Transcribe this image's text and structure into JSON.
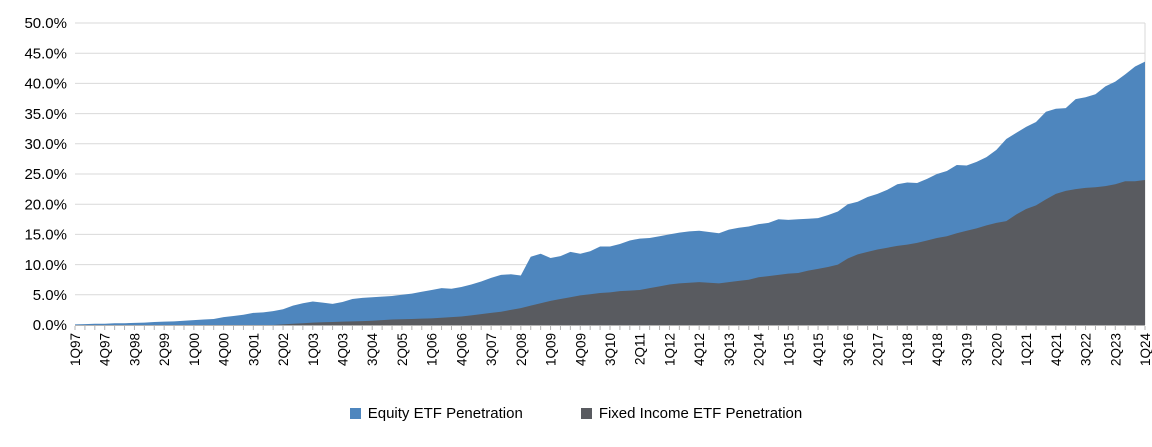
{
  "chart_data": {
    "type": "area",
    "title": "",
    "overlapping_series": true,
    "grid": "horizontal",
    "gridline_color": "#D9D9D9",
    "axis_line_color": "#B3B3B3",
    "text_color": "#000000",
    "legend_position": "bottom-center",
    "ylim": [
      0,
      50
    ],
    "y_tick_step": 5,
    "y_ticks": [
      "0.0%",
      "5.0%",
      "10.0%",
      "15.0%",
      "20.0%",
      "25.0%",
      "30.0%",
      "35.0%",
      "40.0%",
      "45.0%",
      "50.0%"
    ],
    "x_label_every": 3,
    "x": [
      "1Q97",
      "2Q97",
      "3Q97",
      "4Q97",
      "1Q98",
      "2Q98",
      "3Q98",
      "4Q98",
      "1Q99",
      "2Q99",
      "3Q99",
      "4Q99",
      "1Q00",
      "2Q00",
      "3Q00",
      "4Q00",
      "1Q01",
      "2Q01",
      "3Q01",
      "4Q01",
      "1Q02",
      "2Q02",
      "3Q02",
      "4Q02",
      "1Q03",
      "2Q03",
      "3Q03",
      "4Q03",
      "1Q04",
      "2Q04",
      "3Q04",
      "4Q04",
      "1Q05",
      "2Q05",
      "3Q05",
      "4Q05",
      "1Q06",
      "2Q06",
      "3Q06",
      "4Q06",
      "1Q07",
      "2Q07",
      "3Q07",
      "4Q07",
      "1Q08",
      "2Q08",
      "3Q08",
      "4Q08",
      "1Q09",
      "2Q09",
      "3Q09",
      "4Q09",
      "1Q10",
      "2Q10",
      "3Q10",
      "4Q10",
      "1Q11",
      "2Q11",
      "3Q11",
      "4Q11",
      "1Q12",
      "2Q12",
      "3Q12",
      "4Q12",
      "1Q13",
      "2Q13",
      "3Q13",
      "4Q13",
      "1Q14",
      "2Q14",
      "3Q14",
      "4Q14",
      "1Q15",
      "2Q15",
      "3Q15",
      "4Q15",
      "1Q16",
      "2Q16",
      "3Q16",
      "4Q16",
      "1Q17",
      "2Q17",
      "3Q17",
      "4Q17",
      "1Q18",
      "2Q18",
      "3Q18",
      "4Q18",
      "1Q19",
      "2Q19",
      "3Q19",
      "4Q19",
      "1Q20",
      "2Q20",
      "3Q20",
      "4Q20",
      "1Q21",
      "2Q21",
      "3Q21",
      "4Q21",
      "1Q22",
      "2Q22",
      "3Q22",
      "4Q22",
      "1Q23",
      "2Q23",
      "3Q23",
      "4Q23",
      "1Q24"
    ],
    "series": [
      {
        "name": "Equity ETF Penetration",
        "color": "#4E86BE",
        "values": [
          0.1,
          0.15,
          0.2,
          0.2,
          0.3,
          0.3,
          0.35,
          0.4,
          0.5,
          0.55,
          0.6,
          0.7,
          0.8,
          0.9,
          1.0,
          1.3,
          1.5,
          1.7,
          2.0,
          2.1,
          2.3,
          2.6,
          3.2,
          3.6,
          3.9,
          3.7,
          3.5,
          3.8,
          4.3,
          4.5,
          4.6,
          4.7,
          4.8,
          5.0,
          5.2,
          5.5,
          5.8,
          6.1,
          6.0,
          6.3,
          6.7,
          7.2,
          7.8,
          8.3,
          8.4,
          8.2,
          11.3,
          11.8,
          11.1,
          11.4,
          12.1,
          11.8,
          12.2,
          13.0,
          13.0,
          13.4,
          14.0,
          14.3,
          14.4,
          14.7,
          15.0,
          15.3,
          15.5,
          15.6,
          15.4,
          15.2,
          15.8,
          16.1,
          16.3,
          16.7,
          16.9,
          17.5,
          17.4,
          17.5,
          17.6,
          17.7,
          18.2,
          18.8,
          20.0,
          20.4,
          21.2,
          21.7,
          22.4,
          23.3,
          23.6,
          23.5,
          24.2,
          25.0,
          25.5,
          26.5,
          26.4,
          27.0,
          27.8,
          29.0,
          30.8,
          31.8,
          32.8,
          33.6,
          35.3,
          35.8,
          35.9,
          37.4,
          37.7,
          38.2,
          39.5,
          40.3,
          41.5,
          42.8,
          43.6
        ]
      },
      {
        "name": "Fixed Income ETF Penetration",
        "color": "#595B60",
        "values": [
          0,
          0,
          0,
          0,
          0,
          0,
          0,
          0,
          0,
          0,
          0,
          0,
          0,
          0,
          0,
          0,
          0,
          0,
          0,
          0,
          0,
          0.1,
          0.2,
          0.3,
          0.4,
          0.45,
          0.5,
          0.55,
          0.6,
          0.65,
          0.7,
          0.8,
          0.9,
          0.95,
          1.0,
          1.05,
          1.1,
          1.2,
          1.3,
          1.4,
          1.6,
          1.8,
          2.0,
          2.2,
          2.5,
          2.8,
          3.2,
          3.6,
          4.0,
          4.3,
          4.6,
          4.9,
          5.1,
          5.3,
          5.4,
          5.6,
          5.7,
          5.8,
          6.1,
          6.4,
          6.7,
          6.9,
          7.0,
          7.1,
          7.0,
          6.9,
          7.1,
          7.3,
          7.5,
          7.9,
          8.1,
          8.3,
          8.5,
          8.6,
          9.0,
          9.3,
          9.6,
          10.0,
          11.0,
          11.7,
          12.1,
          12.5,
          12.8,
          13.1,
          13.3,
          13.6,
          14.0,
          14.4,
          14.7,
          15.2,
          15.6,
          16.0,
          16.5,
          16.9,
          17.2,
          18.3,
          19.2,
          19.8,
          20.8,
          21.7,
          22.2,
          22.5,
          22.7,
          22.8,
          23.0,
          23.3,
          23.8,
          23.8,
          24.0
        ]
      }
    ]
  }
}
